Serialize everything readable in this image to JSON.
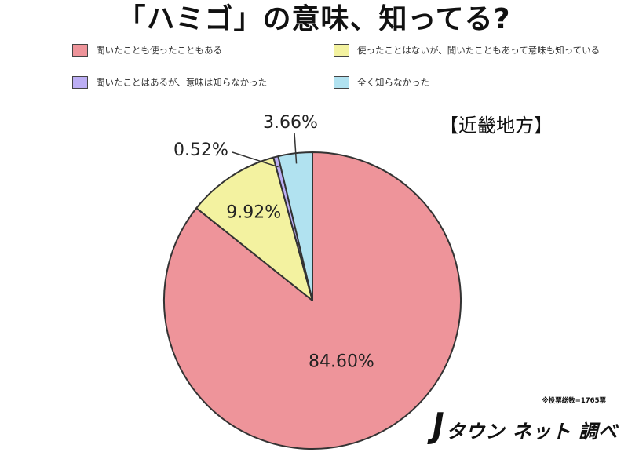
{
  "chart_data": {
    "type": "pie",
    "title": "「ハミゴ」の意味、知ってる?",
    "subtitle": "【近畿地方】",
    "start_angle_deg": 0,
    "direction": "clockwise",
    "legend_position": "top",
    "slices": [
      {
        "label": "聞いたことも使ったこともある",
        "value": 84.6,
        "value_label": "84.60%",
        "color": "#ee949a"
      },
      {
        "label": "使ったことはないが、聞いたこともあって意味も知っている",
        "value": 9.92,
        "value_label": "9.92%",
        "color": "#f3f2a0"
      },
      {
        "label": "聞いたことはあるが、意味は知らなかった",
        "value": 0.52,
        "value_label": "0.52%",
        "color": "#bcaef4"
      },
      {
        "label": "全く知らなかった",
        "value": 3.66,
        "value_label": "3.66%",
        "color": "#b1e2f0"
      }
    ]
  },
  "footer": {
    "note": "※投票総数=1765票",
    "brand_j": "J",
    "brand_text": "タウン ネット 調べ"
  }
}
